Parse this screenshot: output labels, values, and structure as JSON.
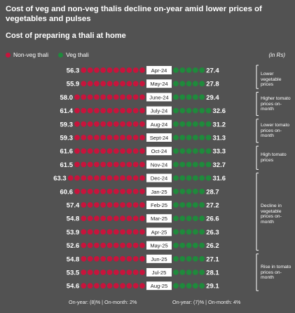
{
  "header": {
    "title": "Cost of veg and non-veg thalis decline on-year amid lower prices of vegetables and pulses",
    "subtitle": "Cost of preparing a thali at home",
    "unit": "(in Rs)"
  },
  "colors": {
    "background": "#525252",
    "non_veg": "#c8143c",
    "veg": "#1f8a3c",
    "label_box": "#ffffff"
  },
  "chart_data": {
    "type": "dot-bar",
    "categories": [
      "Apr-24",
      "May-24",
      "June-24",
      "July-24",
      "Aug-24",
      "Sept-24",
      "Oct-24",
      "Nov-24",
      "Dec-24",
      "Jan-25",
      "Feb-25",
      "Mar-25",
      "Apr-25",
      "May-25",
      "Jun-25",
      "Jul-25",
      "Aug-25"
    ],
    "series": [
      {
        "name": "Non-veg thali",
        "values": [
          56.3,
          55.9,
          58.0,
          61.4,
          59.3,
          59.3,
          61.6,
          61.5,
          63.3,
          60.6,
          57.4,
          54.8,
          53.9,
          52.6,
          54.8,
          53.5,
          54.6
        ]
      },
      {
        "name": "Veg thali",
        "values": [
          27.4,
          27.8,
          29.4,
          32.6,
          31.2,
          31.3,
          33.3,
          32.7,
          31.6,
          28.7,
          27.2,
          26.6,
          26.3,
          26.2,
          27.1,
          28.1,
          29.1
        ]
      }
    ],
    "value_labels": {
      "non_veg": [
        "56.3",
        "55.9",
        "58.0",
        "61.4",
        "59.3",
        "59.3",
        "61.6",
        "61.5",
        "63.3",
        "60.6",
        "57.4",
        "54.8",
        "53.9",
        "52.6",
        "54.8",
        "53.5",
        "54.6"
      ],
      "veg": [
        "27.4",
        "27.8",
        "29.4",
        "32.6",
        "31.2",
        "31.3",
        "33.3",
        "32.7",
        "31.6",
        "28.7",
        "27.2",
        "26.6",
        "26.3",
        "26.2",
        "27.1",
        "28.1",
        "29.1"
      ]
    },
    "footer": {
      "non_veg": "On-year: (8)% | On-month: 2%",
      "veg": "On-year: (7)% | On-month: 4%"
    },
    "annotations": [
      {
        "text": "Lower vegetable prices",
        "from": 0,
        "to": 1
      },
      {
        "text": "Higher tomato prices on-month",
        "from": 2,
        "to": 3
      },
      {
        "text": "Lower tomato prices on-month",
        "from": 4,
        "to": 5
      },
      {
        "text": "High tomato prices",
        "from": 6,
        "to": 7
      },
      {
        "text": "Decline in vegetable prices on-month",
        "from": 8,
        "to": 13
      },
      {
        "text": "Rise in tomato prices on-month",
        "from": 14,
        "to": 16
      }
    ]
  }
}
